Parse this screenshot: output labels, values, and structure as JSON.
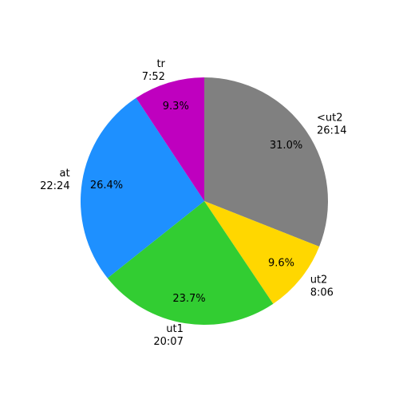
{
  "chart_data": {
    "type": "pie",
    "categories": [
      "<ut2",
      "ut2",
      "ut1",
      "at",
      "tr"
    ],
    "time_labels": [
      "26:14",
      "8:06",
      "20:07",
      "22:24",
      "7:52"
    ],
    "values": [
      31.0,
      9.6,
      23.7,
      26.4,
      9.3
    ],
    "value_labels": [
      "31.0%",
      "9.6%",
      "23.7%",
      "26.4%",
      "9.3%"
    ],
    "colors": [
      "#808080",
      "#ffd700",
      "#32cd32",
      "#1e90ff",
      "#bf00bf"
    ],
    "start_angle": 90,
    "clockwise": true
  }
}
